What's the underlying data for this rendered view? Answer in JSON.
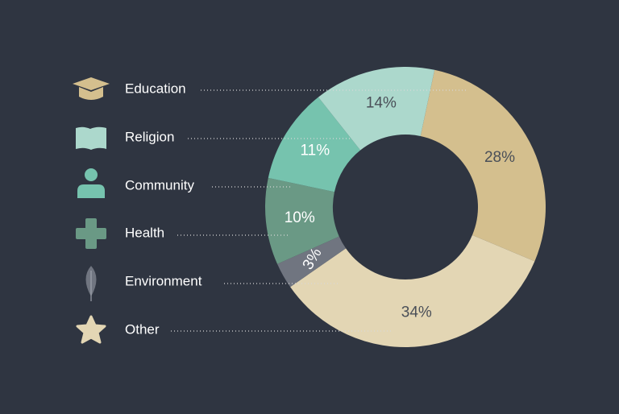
{
  "chart_data": {
    "type": "donut",
    "categories": [
      "Education",
      "Religion",
      "Community",
      "Health",
      "Environment",
      "Other"
    ],
    "values": [
      28,
      14,
      11,
      10,
      3,
      34
    ],
    "value_labels": [
      "28%",
      "14%",
      "11%",
      "10%",
      "3%",
      "34%"
    ],
    "colors": [
      "#d4bf8e",
      "#acd8cc",
      "#76c3ae",
      "#6a9985",
      "#707580",
      "#e3d6b4"
    ]
  }
}
